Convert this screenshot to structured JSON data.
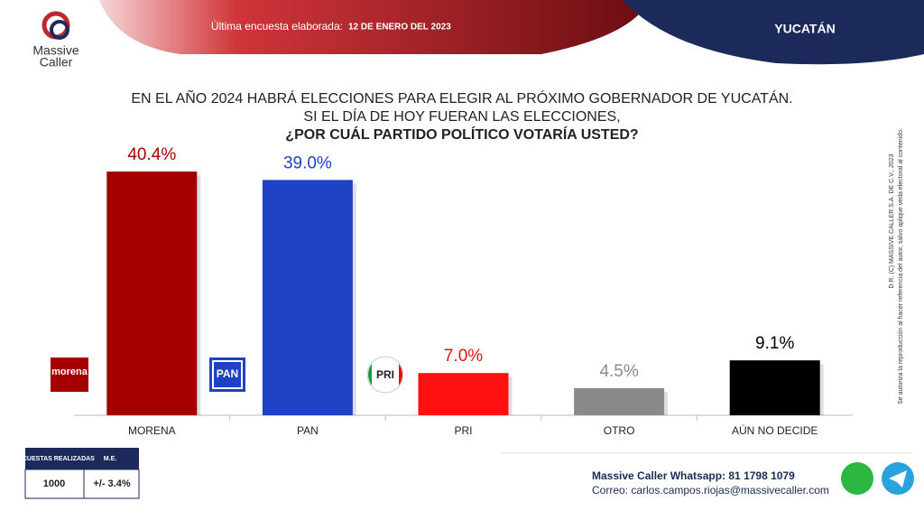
{
  "header": {
    "survey_label": "Última encuesta elaborada:",
    "survey_date": "12 DE ENERO DEL 2023",
    "region": "YUCATÁN"
  },
  "brand": {
    "line1": "Massive",
    "line2": "Caller"
  },
  "chart_data": {
    "type": "bar",
    "title": [
      "EN EL AÑO 2024 HABRÁ ELECCIONES PARA ELEGIR AL PRÓXIMO GOBERNADOR DE YUCATÁN.",
      "SI EL DÍA DE HOY FUERAN LAS ELECCIONES,",
      "¿POR CUÁL PARTIDO POLÍTICO VOTARÍA USTED?"
    ],
    "categories": [
      "MORENA",
      "PAN",
      "PRI",
      "OTRO",
      "AÚN NO DECIDE"
    ],
    "values": [
      40.4,
      39.0,
      7.0,
      4.5,
      9.1
    ],
    "value_labels": [
      "40.4%",
      "39.0%",
      "7.0%",
      "4.5%",
      "9.1%"
    ],
    "colors": [
      "#a60000",
      "#1f42c4",
      "#ff1010",
      "#8a8a8a",
      "#000000"
    ],
    "label_colors": [
      "#a60000",
      "#1f42c4",
      "#e81010",
      "#8a8a8a",
      "#000000"
    ],
    "logos": [
      "morena",
      "PAN",
      "PRI"
    ]
  },
  "table": {
    "headers": [
      "ENCUESTAS REALIZADAS",
      "M.E."
    ],
    "row": [
      "1000",
      "+/- 3.4%"
    ]
  },
  "footer": {
    "whatsapp": "Massive Caller Whatsapp: 81 1798 1079",
    "email": "Correo: carlos.campos.riojas@massivecaller.com"
  },
  "side_note": [
    "D.R. (C) MASSIVE CALLER S.A. DE C.V., 2023",
    "Se autoriza la reproducción al hacer referencia del autor, salvo aplique veda electoral al contenido."
  ]
}
